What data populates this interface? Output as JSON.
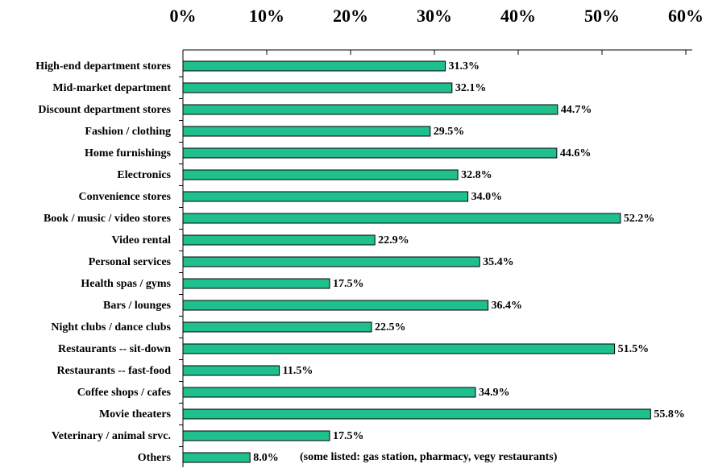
{
  "chart_data": {
    "type": "bar",
    "orientation": "horizontal",
    "categories": [
      "High-end department stores",
      "Mid-market department",
      "Discount department stores",
      "Fashion / clothing",
      "Home furnishings",
      "Electronics",
      "Convenience stores",
      "Book / music / video stores",
      "Video rental",
      "Personal services",
      "Health spas / gyms",
      "Bars / lounges",
      "Night clubs / dance clubs",
      "Restaurants -- sit-down",
      "Restaurants -- fast-food",
      "Coffee shops / cafes",
      "Movie theaters",
      "Veterinary / animal srvc.",
      "Others"
    ],
    "values": [
      31.3,
      32.1,
      44.7,
      29.5,
      44.6,
      32.8,
      34.0,
      52.2,
      22.9,
      35.4,
      17.5,
      36.4,
      22.5,
      51.5,
      11.5,
      34.9,
      55.8,
      17.5,
      8.0
    ],
    "value_labels": [
      "31.3%",
      "32.1%",
      "44.7%",
      "29.5%",
      "44.6%",
      "32.8%",
      "34.0%",
      "52.2%",
      "22.9%",
      "35.4%",
      "17.5%",
      "36.4%",
      "22.5%",
      "51.5%",
      "11.5%",
      "34.9%",
      "55.8%",
      "17.5%",
      "8.0%"
    ],
    "color": "#1fc08e",
    "xlim": [
      0,
      60
    ],
    "xticks": [
      {
        "value": 0,
        "label": "0%"
      },
      {
        "value": 10,
        "label": "10%"
      },
      {
        "value": 20,
        "label": "20%"
      },
      {
        "value": 30,
        "label": "30%"
      },
      {
        "value": 40,
        "label": "40%"
      },
      {
        "value": 50,
        "label": "50%"
      },
      {
        "value": 60,
        "label": "60%"
      }
    ],
    "annotation": "(some listed: gas station, pharmacy, vegy restaurants)"
  }
}
